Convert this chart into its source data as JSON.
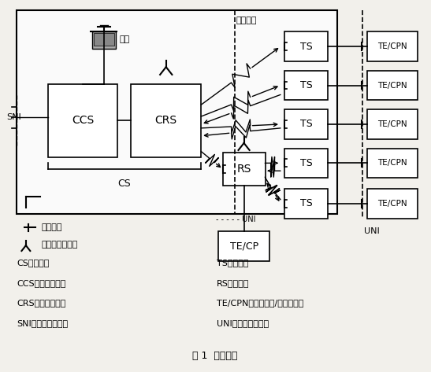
{
  "bg_color": "#ffffff",
  "title": "图 1  系统结构",
  "abbrev_left": [
    "CS：中心站",
    "CCS：中心控制站",
    "CRS：中心射频站",
    "SNI：业务节点接口"
  ],
  "abbrev_right": [
    "TS：终端站",
    "RS：接力站",
    "TE/CPN：终端设备/用户驻地网",
    "UNI：用户网络接口"
  ],
  "label_wangguan": "网管",
  "label_kongzhong": "空中接口",
  "label_cs": "CS",
  "label_ccs": "CCS",
  "label_crs": "CRS",
  "label_sni": "SNI",
  "label_ts": "TS",
  "label_rs": "RS",
  "label_tecp": "TE/CP",
  "label_tecpn": "TE/CPN",
  "label_uni": "UNI",
  "label_uni2": "UNI",
  "legend_dir": "定向天线",
  "legend_omni": "全向或扇区天线"
}
